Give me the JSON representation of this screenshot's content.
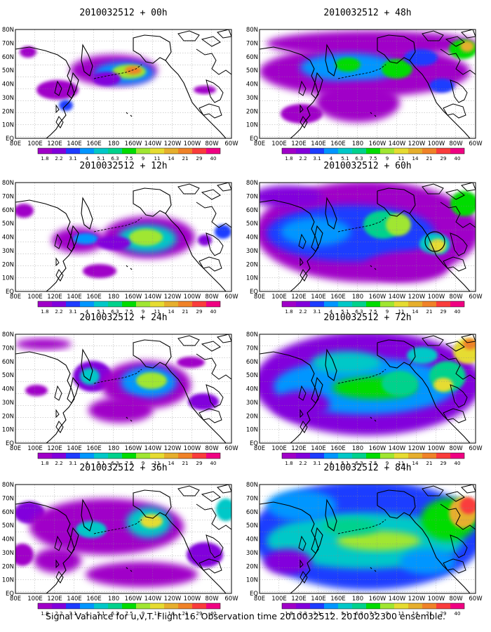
{
  "figure": {
    "caption": "Signal Variance for u,v,T. Flight 16. Observation time 2010032512. 2010032300 ensemble."
  },
  "colorbar": {
    "colors": [
      "#a000c8",
      "#8200dc",
      "#1e3cff",
      "#0096ff",
      "#00c8c8",
      "#00d28c",
      "#00dc00",
      "#a0e632",
      "#e6dc32",
      "#e6af2d",
      "#f08228",
      "#fa3c3c",
      "#f00082"
    ],
    "labels": [
      "1.8",
      "2.2",
      "3.1",
      "4",
      "5.1",
      "6.3",
      "7.5",
      "9",
      "11",
      "14",
      "21",
      "29",
      "40"
    ]
  },
  "map": {
    "lon_labels": [
      "80E",
      "100E",
      "120E",
      "140E",
      "160E",
      "180",
      "160W",
      "140W",
      "120W",
      "100W",
      "80W",
      "60W"
    ],
    "lat_labels": [
      "80N",
      "70N",
      "60N",
      "50N",
      "40N",
      "30N",
      "20N",
      "10N",
      "EQ"
    ]
  },
  "panels": [
    {
      "title": "2010032512 + 00h",
      "lead_hours": 0,
      "coverage": "low"
    },
    {
      "title": "2010032512 + 12h",
      "lead_hours": 12,
      "coverage": "low-moderate"
    },
    {
      "title": "2010032512 + 24h",
      "lead_hours": 24,
      "coverage": "moderate"
    },
    {
      "title": "2010032512 + 36h",
      "lead_hours": 36,
      "coverage": "moderate"
    },
    {
      "title": "2010032512 + 48h",
      "lead_hours": 48,
      "coverage": "moderate-high"
    },
    {
      "title": "2010032512 + 60h",
      "lead_hours": 60,
      "coverage": "high"
    },
    {
      "title": "2010032512 + 72h",
      "lead_hours": 72,
      "coverage": "high"
    },
    {
      "title": "2010032512 + 84h",
      "lead_hours": 84,
      "coverage": "very-high"
    }
  ]
}
